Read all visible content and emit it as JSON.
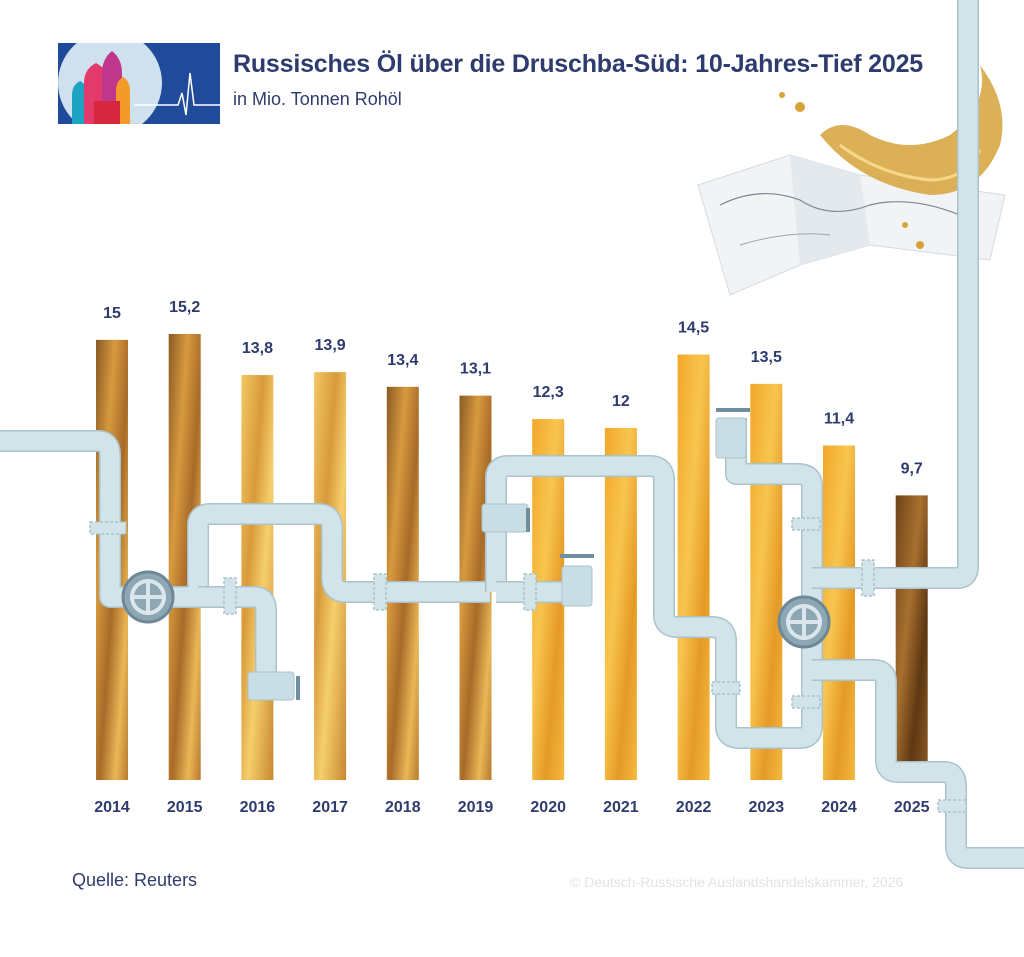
{
  "header": {
    "title": "Russisches Öl über die Druschba-Süd: 10-Jahres-Tief 2025",
    "subtitle": "in Mio. Tonnen Rohöl"
  },
  "footer": {
    "source": "Quelle: Reuters",
    "copyright": "© Deutsch-Russische Auslandshandelskammer, 2026"
  },
  "colors": {
    "text": "#2e3b6e",
    "pipe": "#d2e3e9",
    "pipe_edge": "#a9c3cd",
    "bar_dark": "#7a4a20",
    "bar_mid": "#c98630",
    "bar_light": "#f2c35a"
  },
  "chart_data": {
    "type": "bar",
    "title": "Russisches Öl über die Druschba-Süd: 10-Jahres-Tief 2025",
    "subtitle": "in Mio. Tonnen Rohöl",
    "categories": [
      "2014",
      "2015",
      "2016",
      "2017",
      "2018",
      "2019",
      "2020",
      "2021",
      "2022",
      "2023",
      "2024",
      "2025"
    ],
    "values": [
      15,
      15.2,
      13.8,
      13.9,
      13.4,
      13.1,
      12.3,
      12,
      14.5,
      13.5,
      11.4,
      9.7
    ],
    "value_labels": [
      "15",
      "15,2",
      "13,8",
      "13,9",
      "13,4",
      "13,1",
      "12,3",
      "12",
      "14,5",
      "13,5",
      "11,4",
      "9,7"
    ],
    "ylim": [
      0,
      15.2
    ],
    "grid": false,
    "legend": "none"
  }
}
